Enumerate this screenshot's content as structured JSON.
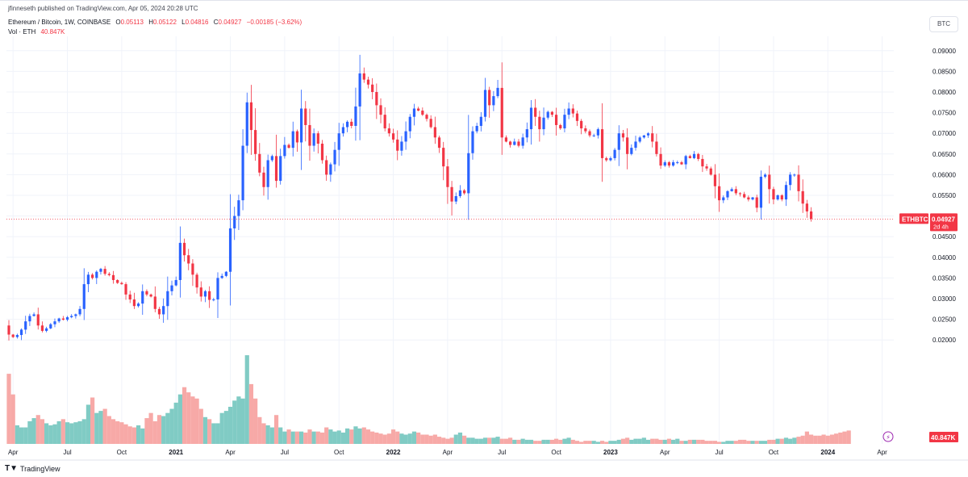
{
  "header": {
    "published_by": "jfinneseth published on TradingView.com, Apr 05, 2024 20:28 UTC",
    "symbol_title": "Ethereum / Bitcoin, 1W, COINBASE",
    "ohlc": [
      {
        "label": "O",
        "value": "0.05113"
      },
      {
        "label": "H",
        "value": "0.05122"
      },
      {
        "label": "L",
        "value": "0.04816"
      },
      {
        "label": "C",
        "value": "0.04927"
      }
    ],
    "change": "−0.00185 (−3.62%)",
    "volume_label": "Vol · ETH",
    "volume_value": "40.847K"
  },
  "currency_button": "BTC",
  "footer": {
    "brand": "TradingView",
    "logo_icon": "tv-logo-icon"
  },
  "colors": {
    "up": "#2962ff",
    "down": "#f23645",
    "vol_up": "#80cbc4",
    "vol_down": "#f7a9a7",
    "grid": "#f0f3fa",
    "text": "#131722"
  },
  "chart_data": {
    "type": "candlestick",
    "symbol": "ETHBTC",
    "interval": "1W",
    "ylim": [
      0.015,
      0.092
    ],
    "y_ticks": [
      "0.09000",
      "0.08500",
      "0.08000",
      "0.07500",
      "0.07000",
      "0.06500",
      "0.06000",
      "0.05500",
      "0.05000",
      "0.04500",
      "0.04000",
      "0.03500",
      "0.03000",
      "0.02500",
      "0.02000"
    ],
    "x_ticks": [
      {
        "label": "Apr",
        "index": 1,
        "bold": false
      },
      {
        "label": "Jul",
        "index": 14,
        "bold": false
      },
      {
        "label": "Oct",
        "index": 27,
        "bold": false
      },
      {
        "label": "2021",
        "index": 40,
        "bold": true
      },
      {
        "label": "Apr",
        "index": 53,
        "bold": false
      },
      {
        "label": "Jul",
        "index": 66,
        "bold": false
      },
      {
        "label": "Oct",
        "index": 79,
        "bold": false
      },
      {
        "label": "2022",
        "index": 92,
        "bold": true
      },
      {
        "label": "Apr",
        "index": 105,
        "bold": false
      },
      {
        "label": "Jul",
        "index": 118,
        "bold": false
      },
      {
        "label": "Oct",
        "index": 131,
        "bold": false
      },
      {
        "label": "2023",
        "index": 144,
        "bold": true
      },
      {
        "label": "Apr",
        "index": 157,
        "bold": false
      },
      {
        "label": "Jul",
        "index": 170,
        "bold": false
      },
      {
        "label": "Oct",
        "index": 183,
        "bold": false
      },
      {
        "label": "2024",
        "index": 196,
        "bold": true
      },
      {
        "label": "Apr",
        "index": 209,
        "bold": false
      }
    ],
    "last_price_label": {
      "symbol": "ETHBTC",
      "price": "0.04927",
      "countdown": "2d 4h",
      "value": 0.04927
    },
    "volume_badge": "40.847K",
    "volume_max": 90,
    "price_path": [
      0.0235,
      0.0213,
      0.0207,
      0.0212,
      0.0225,
      0.0245,
      0.0258,
      0.0262,
      0.0235,
      0.0222,
      0.0228,
      0.0238,
      0.0245,
      0.0252,
      0.0249,
      0.0255,
      0.0258,
      0.0262,
      0.0275,
      0.0335,
      0.0358,
      0.035,
      0.0365,
      0.0372,
      0.036,
      0.0357,
      0.0345,
      0.0338,
      0.0335,
      0.031,
      0.0298,
      0.0282,
      0.0288,
      0.0318,
      0.031,
      0.0305,
      0.0275,
      0.0262,
      0.0282,
      0.0318,
      0.0332,
      0.0345,
      0.0435,
      0.0405,
      0.0385,
      0.0358,
      0.0327,
      0.0305,
      0.0318,
      0.0297,
      0.0298,
      0.035,
      0.0355,
      0.0365,
      0.047,
      0.05,
      0.0538,
      0.067,
      0.0775,
      0.0708,
      0.065,
      0.0605,
      0.057,
      0.0635,
      0.0645,
      0.0585,
      0.0645,
      0.0672,
      0.0665,
      0.0705,
      0.0678,
      0.076,
      0.072,
      0.067,
      0.07,
      0.0675,
      0.0635,
      0.06,
      0.0625,
      0.066,
      0.07,
      0.0715,
      0.0728,
      0.0718,
      0.0765,
      0.0845,
      0.083,
      0.0818,
      0.08,
      0.0768,
      0.0745,
      0.0712,
      0.07,
      0.0685,
      0.0658,
      0.068,
      0.0705,
      0.074,
      0.076,
      0.0755,
      0.0745,
      0.0735,
      0.0715,
      0.069,
      0.0665,
      0.062,
      0.057,
      0.0535,
      0.0548,
      0.0562,
      0.0555,
      0.0652,
      0.0705,
      0.0718,
      0.074,
      0.0805,
      0.0768,
      0.079,
      0.081,
      0.069,
      0.068,
      0.0672,
      0.068,
      0.067,
      0.069,
      0.071,
      0.0762,
      0.074,
      0.071,
      0.0738,
      0.0752,
      0.0745,
      0.072,
      0.0712,
      0.0745,
      0.076,
      0.0748,
      0.073,
      0.0712,
      0.0705,
      0.0695,
      0.0695,
      0.071,
      0.064,
      0.0635,
      0.064,
      0.066,
      0.07,
      0.069,
      0.065,
      0.0665,
      0.068,
      0.069,
      0.0695,
      0.07,
      0.068,
      0.065,
      0.0622,
      0.063,
      0.0622,
      0.063,
      0.063,
      0.0625,
      0.0645,
      0.064,
      0.065,
      0.0638,
      0.062,
      0.0615,
      0.06,
      0.0572,
      0.0538,
      0.0545,
      0.056,
      0.0565,
      0.0555,
      0.0553,
      0.0545,
      0.054,
      0.0545,
      0.052,
      0.0595,
      0.06,
      0.0565,
      0.054,
      0.055,
      0.054,
      0.0575,
      0.06,
      0.06,
      0.056,
      0.053,
      0.0511,
      0.0493
    ],
    "volume": [
      68,
      48,
      18,
      16,
      16,
      22,
      25,
      28,
      24,
      20,
      18,
      19,
      22,
      24,
      21,
      20,
      21,
      22,
      24,
      38,
      45,
      30,
      32,
      34,
      27,
      24,
      22,
      21,
      19,
      17,
      16,
      18,
      15,
      25,
      30,
      22,
      28,
      27,
      30,
      34,
      40,
      48,
      55,
      50,
      46,
      44,
      34,
      26,
      24,
      20,
      20,
      30,
      32,
      36,
      42,
      46,
      44,
      86,
      58,
      44,
      26,
      20,
      18,
      16,
      28,
      16,
      12,
      14,
      12,
      12,
      12,
      11,
      14,
      12,
      12,
      11,
      16,
      14,
      12,
      13,
      11,
      15,
      14,
      17,
      15,
      16,
      14,
      12,
      11,
      10,
      9,
      10,
      14,
      12,
      10,
      9,
      10,
      12,
      11,
      9,
      9,
      8,
      9,
      7,
      6,
      5,
      6,
      9,
      11,
      8,
      6,
      6,
      5,
      5,
      6,
      6,
      6,
      7,
      5,
      5,
      6,
      4,
      4,
      5,
      4,
      4,
      3,
      3,
      4,
      4,
      4,
      5,
      4,
      5,
      6,
      4,
      3,
      2,
      3,
      3,
      3,
      2,
      3,
      2,
      3,
      3,
      4,
      5,
      6,
      4,
      5,
      5,
      6,
      4,
      5,
      5,
      4,
      4,
      5,
      4,
      5,
      3,
      3,
      4,
      4,
      4,
      4,
      3,
      3,
      3,
      2,
      2,
      3,
      3,
      3,
      4,
      4,
      3,
      3,
      3,
      3,
      3,
      4,
      4,
      5,
      5,
      6,
      5,
      6,
      7,
      8,
      12,
      9,
      8,
      8,
      9,
      8,
      9,
      10,
      11,
      12,
      13
    ]
  }
}
